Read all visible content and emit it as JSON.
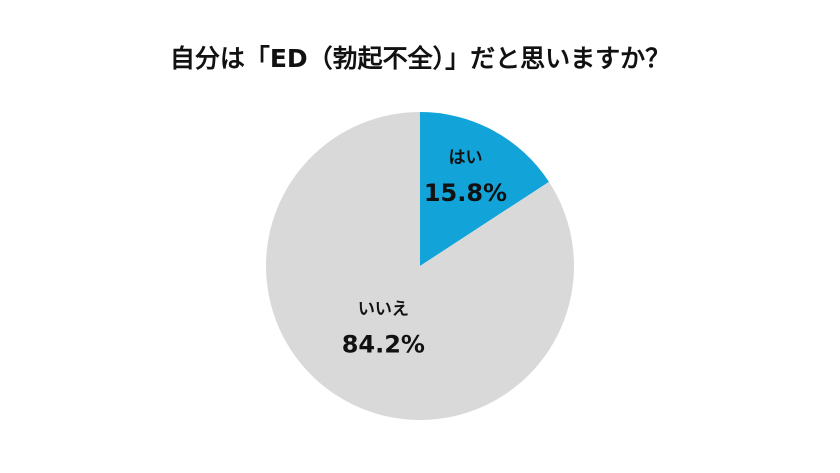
{
  "chart_data": {
    "type": "pie",
    "title": "自分は「ED（勃起不全）」だと思いますか？",
    "categories": [
      "はい",
      "いいえ"
    ],
    "values": [
      15.8,
      84.2
    ],
    "value_labels": [
      "15.8%",
      "84.2%"
    ],
    "colors": [
      "#12a4d9",
      "#d9d9d9"
    ]
  }
}
